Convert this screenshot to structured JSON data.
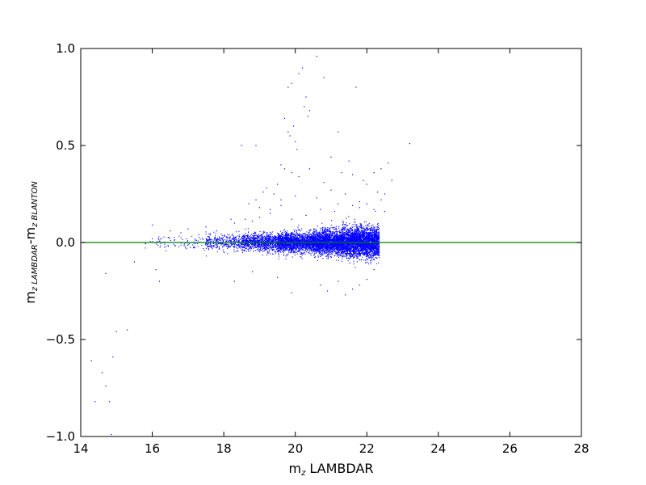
{
  "chart_data": {
    "type": "scatter",
    "title": "",
    "xlabel": {
      "main": "m",
      "sub": "z",
      "rest": " LAMBDAR"
    },
    "ylabel": {
      "m1": "m",
      "sub1": "z LAMBDAR",
      "dash": "-",
      "m2": "m",
      "sub2": "z BLANTON"
    },
    "xlim": [
      14,
      28
    ],
    "ylim": [
      -1.0,
      1.0
    ],
    "xticks": [
      14,
      16,
      18,
      20,
      22,
      24,
      26,
      28
    ],
    "xtick_labels": [
      "14",
      "16",
      "18",
      "20",
      "22",
      "24",
      "26",
      "28"
    ],
    "yticks": [
      -1.0,
      -0.5,
      0.0,
      0.5,
      1.0
    ],
    "ytick_labels": [
      "−1.0",
      "−0.5",
      "0.0",
      "0.5",
      "1.0"
    ],
    "grid": false,
    "colors": {
      "points": "#0000ff",
      "reference_line": "#008000"
    },
    "reference_line": {
      "y": 0.0
    },
    "series": [
      {
        "x": [
          14.3,
          14.4,
          14.6,
          14.7,
          14.8,
          14.85,
          14.9,
          15.0,
          15.3,
          14.7,
          15.5,
          16.1,
          16.2,
          18.5,
          18.9,
          19.6,
          19.7,
          19.8,
          19.8,
          19.85,
          19.9,
          19.95,
          20.0,
          20.05,
          20.1,
          20.2,
          20.25,
          20.3,
          20.35,
          20.4,
          20.6,
          20.8,
          21.0,
          21.2,
          21.5,
          21.7,
          19.2,
          19.4,
          19.5,
          19.6,
          19.7,
          19.9,
          20.1,
          20.4,
          20.8,
          21.3,
          21.6,
          21.9,
          22.0,
          22.2,
          22.4,
          22.6,
          22.7,
          23.2,
          18.2,
          18.7,
          18.9,
          19.0,
          19.1,
          19.3,
          19.6,
          20.0,
          20.6,
          21.0,
          21.2,
          21.4,
          21.6,
          21.8,
          22.3,
          22.5,
          16.0,
          16.5,
          16.8,
          17.0,
          17.3,
          17.5,
          17.8,
          18.3,
          18.6,
          18.8,
          19.0,
          19.3,
          19.9,
          20.3,
          20.7,
          21.1,
          21.8,
          22.0,
          22.2,
          22.4,
          22.5,
          18.3,
          18.8,
          19.5,
          19.9,
          20.7,
          20.9,
          21.2,
          21.4,
          21.6,
          21.8,
          22.0,
          22.2
        ],
        "y": [
          -0.61,
          -0.82,
          -0.67,
          -0.74,
          -0.82,
          -0.99,
          -0.59,
          -0.46,
          -0.45,
          -0.16,
          -0.1,
          -0.14,
          -0.2,
          0.5,
          0.5,
          0.4,
          0.64,
          0.57,
          0.8,
          0.55,
          0.82,
          0.6,
          0.52,
          0.48,
          0.87,
          0.9,
          0.7,
          0.75,
          0.65,
          0.68,
          0.96,
          0.85,
          0.44,
          0.57,
          0.42,
          0.8,
          0.28,
          0.25,
          0.3,
          0.22,
          0.38,
          0.36,
          0.34,
          0.38,
          0.31,
          0.36,
          0.35,
          0.32,
          0.3,
          0.36,
          0.38,
          0.41,
          0.32,
          0.51,
          0.12,
          0.2,
          0.22,
          0.18,
          0.26,
          0.17,
          0.19,
          0.24,
          0.23,
          0.27,
          0.2,
          0.25,
          0.19,
          0.21,
          0.26,
          0.16,
          0.09,
          0.06,
          0.05,
          0.07,
          0.04,
          0.08,
          0.06,
          0.1,
          0.12,
          0.11,
          0.13,
          0.15,
          0.12,
          0.14,
          0.17,
          0.16,
          0.18,
          0.2,
          0.17,
          0.22,
          0.25,
          -0.2,
          -0.15,
          -0.18,
          -0.26,
          -0.22,
          -0.25,
          -0.2,
          -0.27,
          -0.24,
          -0.22,
          -0.19,
          -0.14
        ]
      }
    ],
    "dense_band": {
      "note_free": true,
      "segments": [
        {
          "x_range": [
            15.8,
            17.5
          ],
          "y_spread": 0.035,
          "count": 90
        },
        {
          "x_range": [
            17.5,
            18.5
          ],
          "y_spread": 0.04,
          "count": 320
        },
        {
          "x_range": [
            18.5,
            19.5
          ],
          "y_spread": 0.045,
          "count": 900
        },
        {
          "x_range": [
            19.5,
            20.5
          ],
          "y_spread": 0.05,
          "count": 1700
        },
        {
          "x_range": [
            20.5,
            21.3
          ],
          "y_spread": 0.06,
          "count": 2000
        },
        {
          "x_range": [
            21.3,
            22.35
          ],
          "y_spread": 0.075,
          "count": 3000
        }
      ]
    }
  }
}
